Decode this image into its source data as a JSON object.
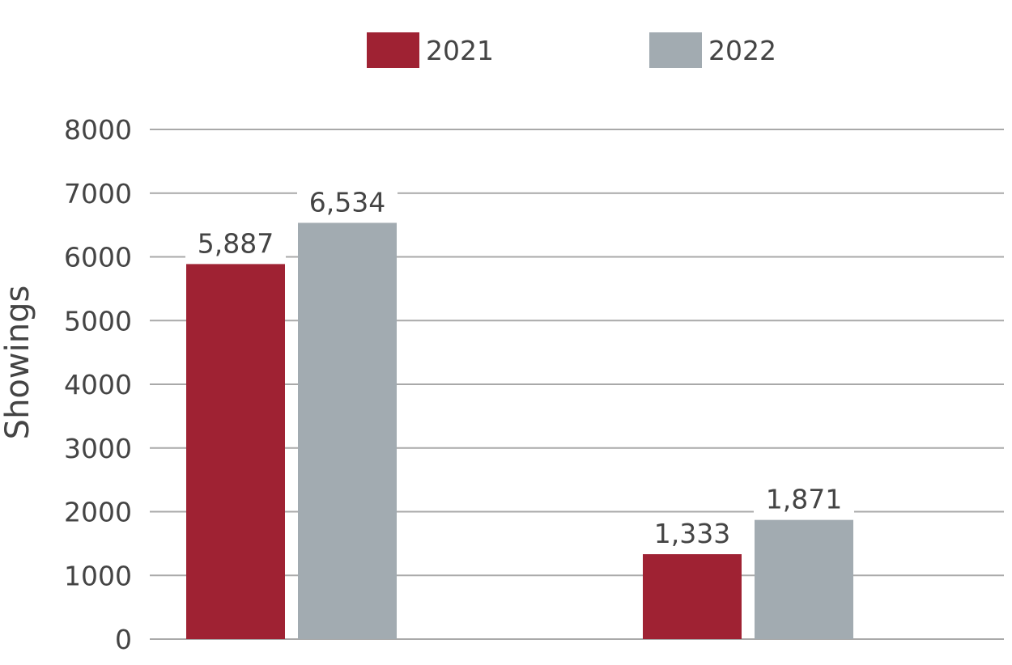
{
  "chart_data": {
    "type": "bar",
    "title": "",
    "ylabel": "Showings",
    "xlabel": "",
    "categories": [
      "",
      ""
    ],
    "series": [
      {
        "name": "2021",
        "values": [
          5887,
          1333
        ],
        "labels": [
          "5,887",
          "1,333"
        ],
        "color": "#9f2233"
      },
      {
        "name": "2022",
        "values": [
          6534,
          1871
        ],
        "labels": [
          "6,534",
          "1,871"
        ],
        "color": "#a2abb1"
      }
    ],
    "ylim": [
      0,
      8000
    ],
    "yticks": [
      0,
      1000,
      2000,
      3000,
      4000,
      5000,
      6000,
      7000,
      8000
    ],
    "grid": true,
    "legend_position": "top-center"
  }
}
